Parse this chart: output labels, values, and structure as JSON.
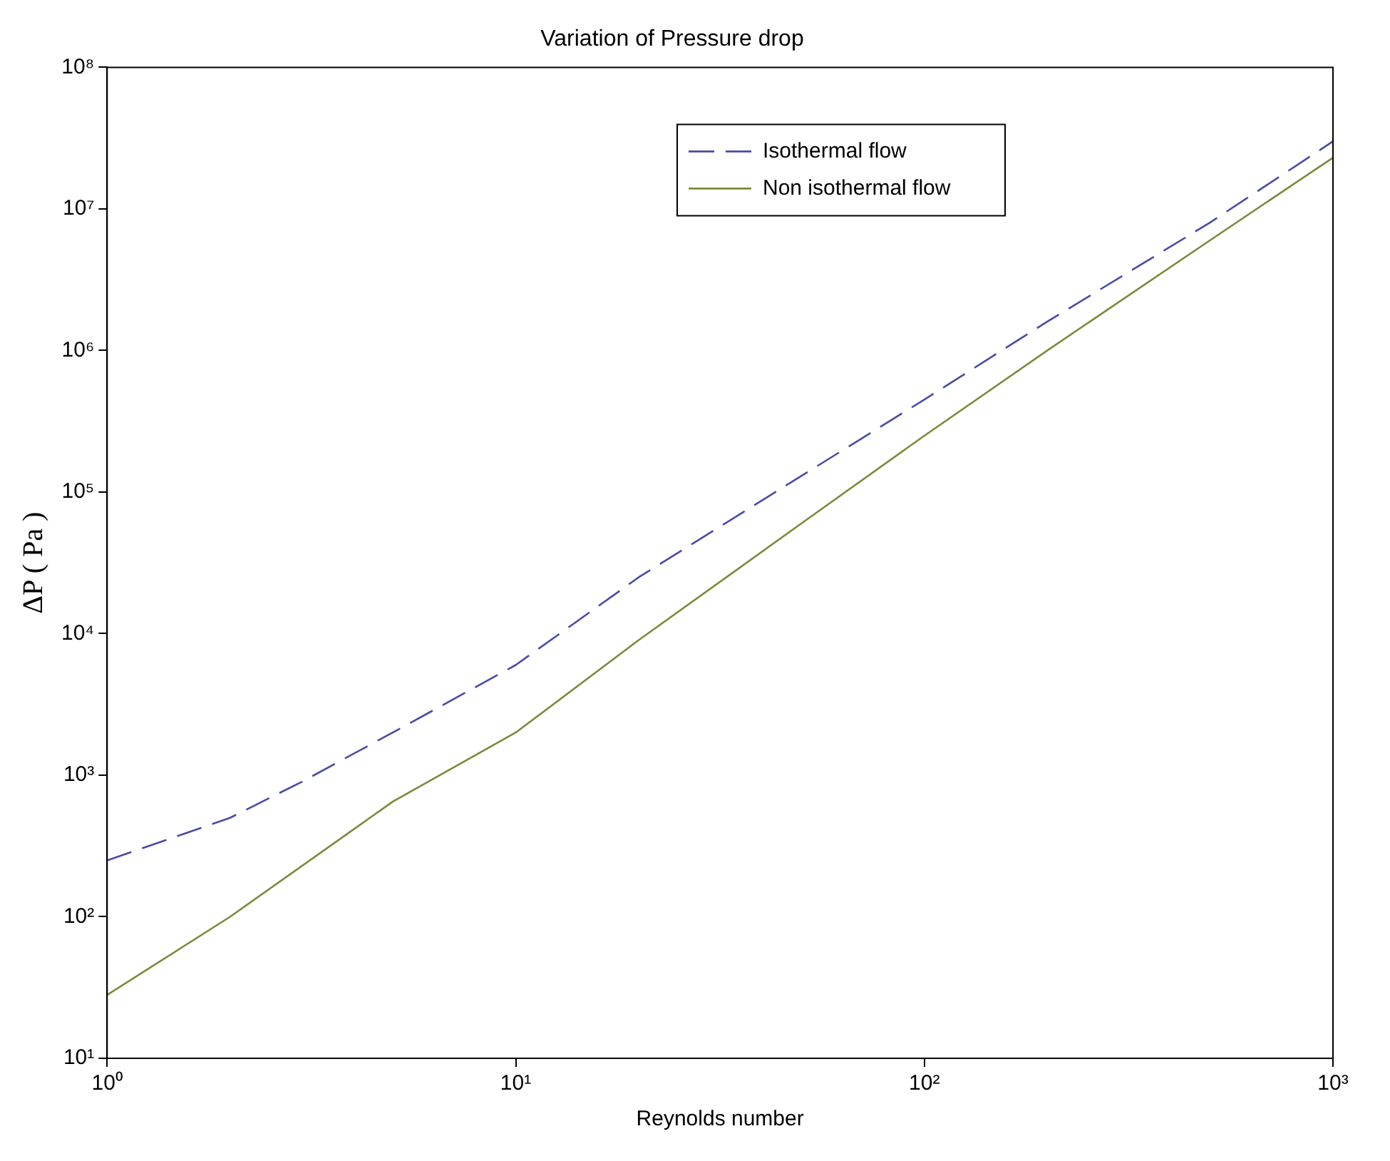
{
  "chart_data": {
    "type": "line",
    "title": "Variation of Pressure drop",
    "xlabel": "Reynolds number",
    "ylabel": "ΔP ( Pa )",
    "log": "xy",
    "grid": false,
    "legend": "top right",
    "marker": "none",
    "xlim": [
      1,
      1000
    ],
    "xticks": [
      {
        "value": 1,
        "label": "10⁰"
      },
      {
        "value": 10,
        "label": "10¹"
      },
      {
        "value": 100,
        "label": "10²"
      },
      {
        "value": 1000,
        "label": "10³"
      }
    ],
    "ylim": [
      10,
      100000000
    ],
    "yticks": [
      {
        "value": 10,
        "label": "10¹"
      },
      {
        "value": 100,
        "label": "10²"
      },
      {
        "value": 1000,
        "label": "10³"
      },
      {
        "value": 10000,
        "label": "10⁴"
      },
      {
        "value": 100000,
        "label": "10⁵"
      },
      {
        "value": 1000000,
        "label": "10⁶"
      },
      {
        "value": 10000000,
        "label": "10⁷"
      },
      {
        "value": 100000000,
        "label": "10⁸"
      }
    ],
    "series": [
      {
        "name": "Isothermal flow",
        "color": "#4a4aa8",
        "line_style": "dashed",
        "x": [
          1,
          2,
          3,
          5,
          10,
          20,
          50,
          100,
          200,
          500,
          1000
        ],
        "values": [
          250,
          500,
          900,
          2000,
          6000,
          25000,
          130000,
          450000,
          1600000,
          8000000,
          30000000
        ]
      },
      {
        "name": "Non isothermal flow",
        "color": "#7a8a3a",
        "line_style": "solid",
        "x": [
          1,
          2,
          5,
          10,
          20,
          50,
          100,
          200,
          500,
          1000
        ],
        "values": [
          28,
          100,
          650,
          2000,
          9000,
          60000,
          250000,
          1000000,
          6000000,
          23000000
        ]
      }
    ]
  }
}
